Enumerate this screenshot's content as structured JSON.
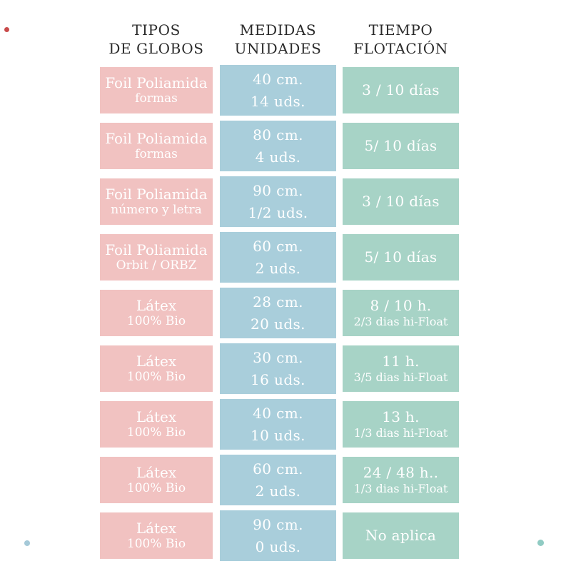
{
  "header": {
    "cols": [
      {
        "line1": "TIPOS",
        "line2": "DE GLOBOS"
      },
      {
        "line1": "MEDIDAS",
        "line2": "UNIDADES"
      },
      {
        "line1": "TIEMPO",
        "line2": "FLOTACIÓN"
      }
    ]
  },
  "table": {
    "rows": [
      {
        "tipo": "Foil Poliamida",
        "tipo_sub": "formas",
        "medida": "40 cm.",
        "unidades": "14 uds.",
        "flotacion": "3 / 10 días",
        "flotacion_sub": ""
      },
      {
        "tipo": "Foil Poliamida",
        "tipo_sub": "formas",
        "medida": "80 cm.",
        "unidades": "4 uds.",
        "flotacion": "5/ 10 días",
        "flotacion_sub": ""
      },
      {
        "tipo": "Foil Poliamida",
        "tipo_sub": "número y letra",
        "medida": "90 cm.",
        "unidades": "1/2 uds.",
        "flotacion": "3 / 10 días",
        "flotacion_sub": ""
      },
      {
        "tipo": "Foil Poliamida",
        "tipo_sub": "Orbit / ORBZ",
        "medida": "60 cm.",
        "unidades": "2 uds.",
        "flotacion": "5/ 10 días",
        "flotacion_sub": ""
      },
      {
        "tipo": "Látex",
        "tipo_sub": "100% Bio",
        "medida": "28 cm.",
        "unidades": "20 uds.",
        "flotacion": "8 / 10 h.",
        "flotacion_sub": "2/3 dias hi-Float"
      },
      {
        "tipo": "Látex",
        "tipo_sub": "100% Bio",
        "medida": "30 cm.",
        "unidades": "16 uds.",
        "flotacion": "11 h.",
        "flotacion_sub": "3/5 dias hi-Float"
      },
      {
        "tipo": "Látex",
        "tipo_sub": "100% Bio",
        "medida": "40 cm.",
        "unidades": "10 uds.",
        "flotacion": "13 h.",
        "flotacion_sub": "1/3 dias hi-Float"
      },
      {
        "tipo": "Látex",
        "tipo_sub": "100% Bio",
        "medida": "60 cm.",
        "unidades": "2 uds.",
        "flotacion": "24 / 48 h..",
        "flotacion_sub": "1/3 dias hi-Float"
      },
      {
        "tipo": "Látex",
        "tipo_sub": "100% Bio",
        "medida": "90 cm.",
        "unidades": "0 uds.",
        "flotacion": "No aplica",
        "flotacion_sub": ""
      }
    ]
  },
  "chart_data": {
    "type": "table",
    "columns": [
      "TIPOS DE GLOBOS",
      "MEDIDAS UNIDADES",
      "TIEMPO FLOTACIÓN"
    ],
    "rows": [
      [
        "Foil Poliamida formas",
        "40 cm. 14 uds.",
        "3 / 10 días"
      ],
      [
        "Foil Poliamida formas",
        "80 cm. 4 uds.",
        "5/ 10 días"
      ],
      [
        "Foil Poliamida número y letra",
        "90 cm. 1/2 uds.",
        "3 / 10 días"
      ],
      [
        "Foil Poliamida Orbit / ORBZ",
        "60 cm. 2 uds.",
        "5/ 10 días"
      ],
      [
        "Látex 100% Bio",
        "28 cm. 20 uds.",
        "8 / 10 h. 2/3 dias hi-Float"
      ],
      [
        "Látex 100% Bio",
        "30 cm. 16 uds.",
        "11 h. 3/5 dias hi-Float"
      ],
      [
        "Látex 100% Bio",
        "40 cm. 10 uds.",
        "13 h. 1/3 dias hi-Float"
      ],
      [
        "Látex 100% Bio",
        "60 cm. 2 uds.",
        "24 / 48 h.. 1/3 dias hi-Float"
      ],
      [
        "Látex 100% Bio",
        "90 cm. 0 uds.",
        "No aplica"
      ]
    ]
  },
  "colors": {
    "pink": "#f1c2c1",
    "blue": "#a9cedb",
    "green": "#a7d3c6",
    "header_text": "#2b2b2b",
    "cell_text": "#ffffff",
    "dot_red": "#c94b4b",
    "dot_blue": "#a5c9d8",
    "dot_teal": "#90cbc3"
  }
}
